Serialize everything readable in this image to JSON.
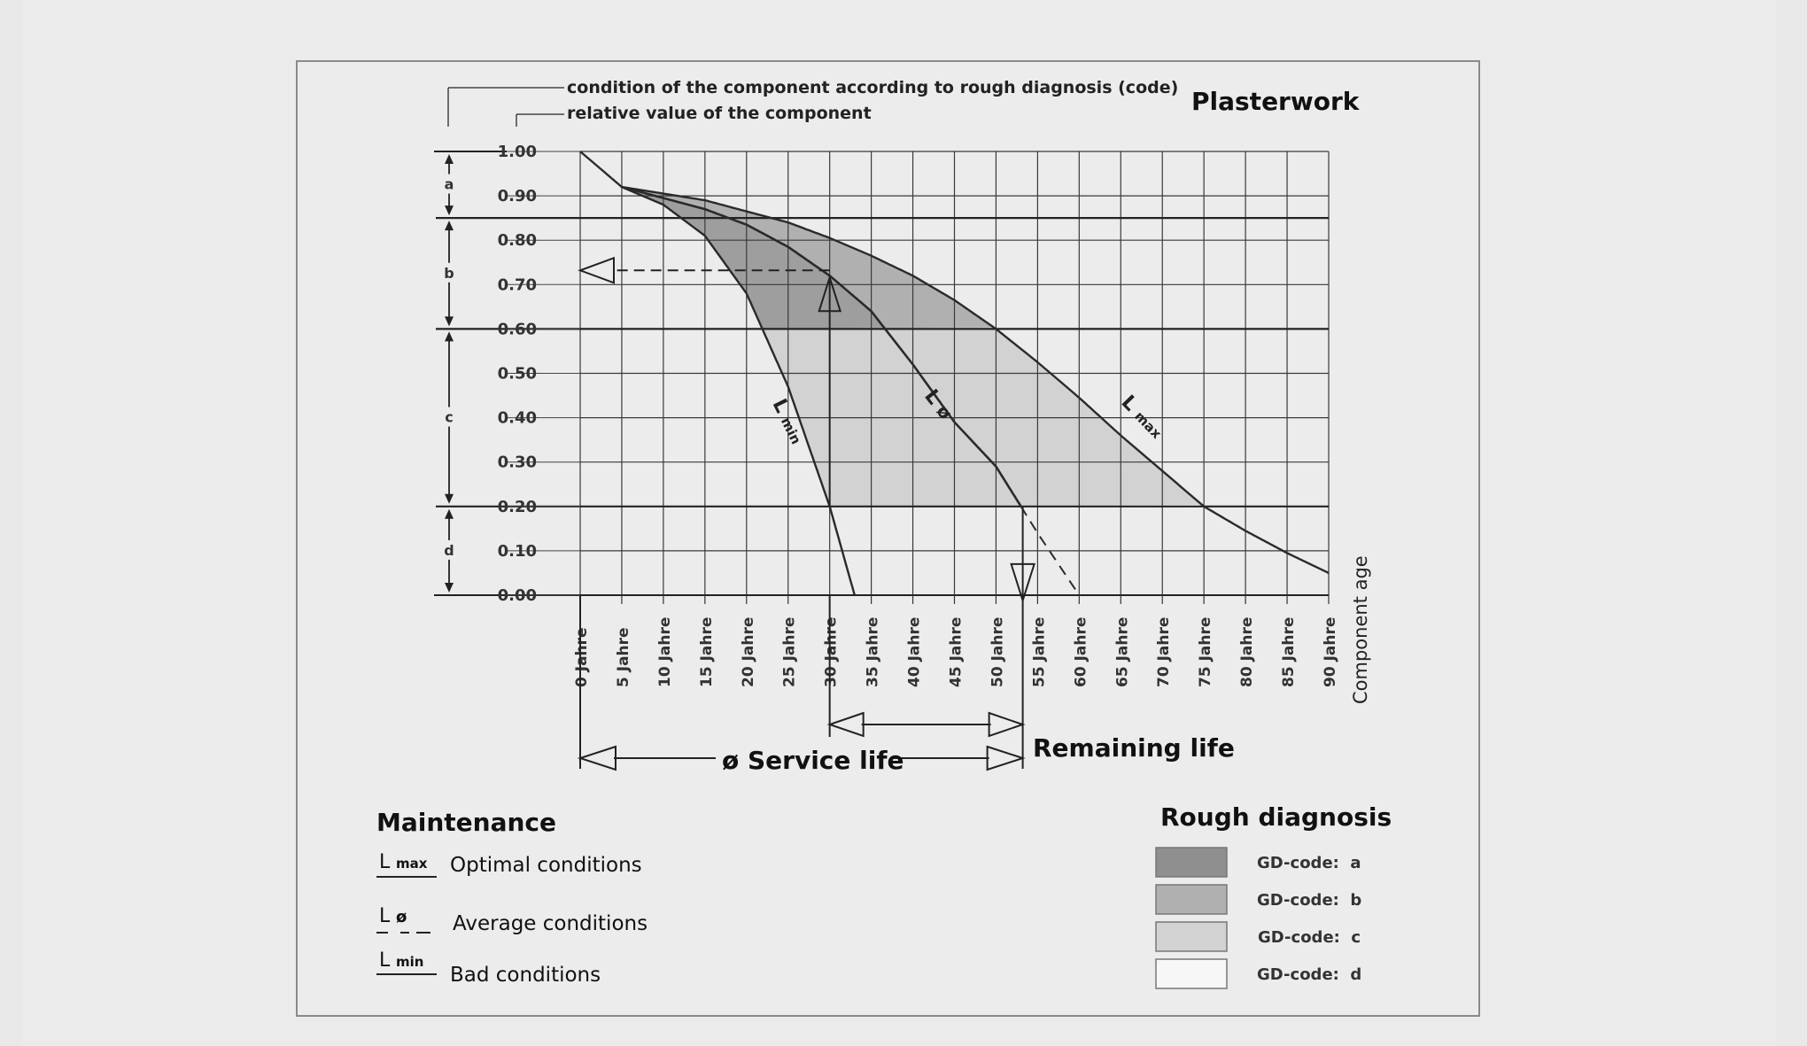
{
  "chart_data": {
    "type": "line",
    "title": "Plasterwork",
    "header_labels": [
      "condition of the component according to rough diagnosis (code)",
      "relative value of the component"
    ],
    "xlabel": "Component age",
    "x_ticks": [
      "0 Jahre",
      "5 Jahre",
      "10 Jahre",
      "15 Jahre",
      "20 Jahre",
      "25 Jahre",
      "30 Jahre",
      "35 Jahre",
      "40 Jahre",
      "45 Jahre",
      "50 Jahre",
      "55 Jahre",
      "60 Jahre",
      "65 Jahre",
      "70 Jahre",
      "75 Jahre",
      "80 Jahre",
      "85 Jahre",
      "90 Jahre"
    ],
    "xlim": [
      0,
      90
    ],
    "y_ticks": [
      "1.00",
      "0.90",
      "0.80",
      "0.70",
      "0.60",
      "0.50",
      "0.40",
      "0.30",
      "0.20",
      "0.10",
      "0.00"
    ],
    "ylim": [
      0,
      1
    ],
    "grid": true,
    "code_bands": [
      {
        "code": "a",
        "from": 0.85,
        "to": 1.0
      },
      {
        "code": "b",
        "from": 0.6,
        "to": 0.85
      },
      {
        "code": "c",
        "from": 0.2,
        "to": 0.6
      },
      {
        "code": "d",
        "from": 0.0,
        "to": 0.2
      }
    ],
    "series": [
      {
        "name": "L max",
        "label_sub": "max",
        "x": [
          0,
          5,
          10,
          15,
          20,
          25,
          30,
          35,
          40,
          45,
          50,
          55,
          60,
          65,
          70,
          75,
          80,
          85,
          90
        ],
        "y": [
          1.0,
          0.92,
          0.905,
          0.89,
          0.865,
          0.84,
          0.805,
          0.765,
          0.72,
          0.665,
          0.6,
          0.525,
          0.445,
          0.36,
          0.28,
          0.2,
          0.145,
          0.095,
          0.05
        ]
      },
      {
        "name": "L ø",
        "label_sub": "ø",
        "x": [
          5,
          10,
          15,
          20,
          25,
          30,
          35,
          40,
          45,
          50,
          53,
          55,
          60
        ],
        "y": [
          0.92,
          0.895,
          0.87,
          0.835,
          0.785,
          0.72,
          0.64,
          0.52,
          0.39,
          0.29,
          0.2,
          0.14,
          0.0
        ]
      },
      {
        "name": "L min",
        "label_sub": "min",
        "x": [
          5,
          10,
          15,
          20,
          25,
          30,
          33
        ],
        "y": [
          0.92,
          0.88,
          0.81,
          0.68,
          0.47,
          0.2,
          0.0
        ]
      }
    ],
    "annotations": {
      "service_life": "ø Service life",
      "remaining_life": "Remaining life",
      "service_life_years": 53,
      "current_age_years": 30,
      "current_value": 0.72
    }
  },
  "maintenance": {
    "title": "Maintenance",
    "items": [
      {
        "symbol": "L",
        "sub": "max",
        "label": "Optimal conditions"
      },
      {
        "symbol": "L",
        "sub": "ø",
        "label": "Average conditions"
      },
      {
        "symbol": "L",
        "sub": "min",
        "label": "Bad conditions"
      }
    ]
  },
  "rough_diagnosis": {
    "title": "Rough diagnosis",
    "items": [
      {
        "label": "GD-code:  a",
        "color": "#8f8f8f"
      },
      {
        "label": "GD-code:  b",
        "color": "#b0b0b0"
      },
      {
        "label": "GD-code:  c",
        "color": "#d2d2d2"
      },
      {
        "label": "GD-code:  d",
        "color": "#f7f7f7"
      }
    ]
  },
  "colors": {
    "background": "#e9e9e9",
    "panel": "#ececec",
    "line": "#333333",
    "grid": "#3a3a3a"
  }
}
